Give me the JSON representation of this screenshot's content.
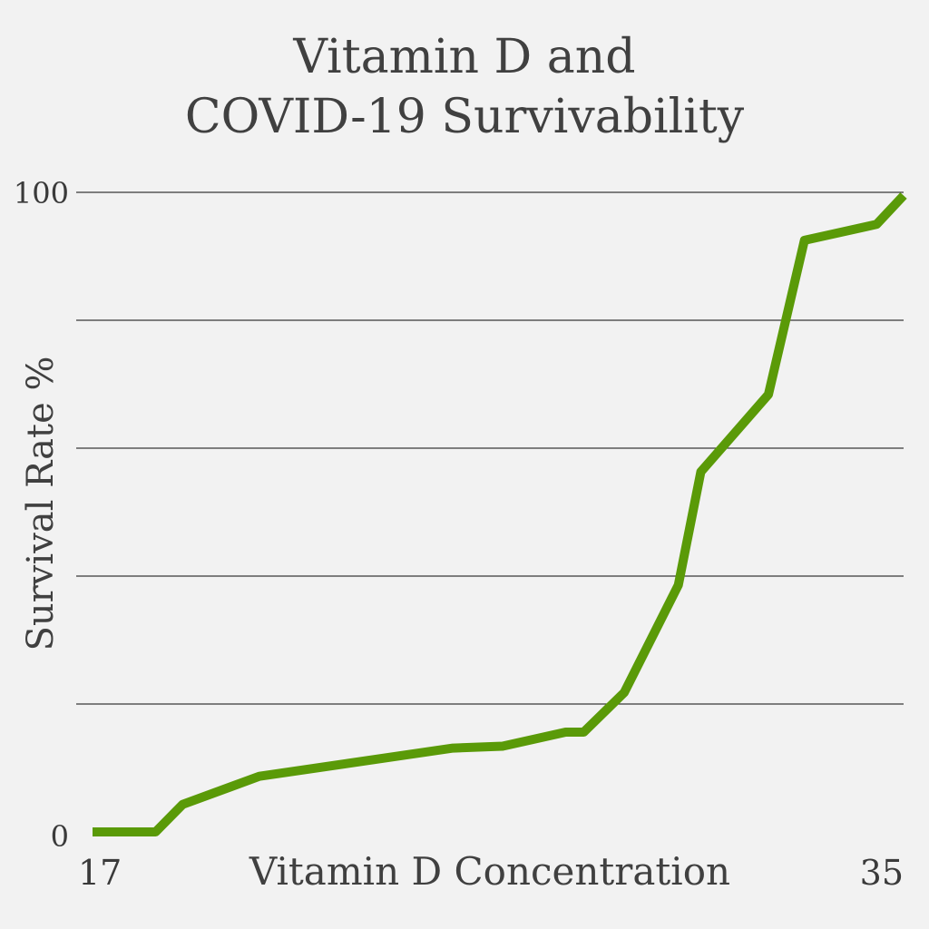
{
  "chart_data": {
    "type": "line",
    "title_lines": [
      "Vitamin D and",
      "COVID-19 Survivability"
    ],
    "xlabel": "Vitamin D Concentration",
    "ylabel": "Survival Rate %",
    "xlim": [
      17,
      35
    ],
    "ylim": [
      0,
      100
    ],
    "x_tick_labels": [
      "17",
      "35"
    ],
    "y_tick_labels": [
      "0",
      "100"
    ],
    "y_gridlines": [
      20,
      40,
      60,
      80,
      100
    ],
    "grid": true,
    "line_color": "#5a9a08",
    "series": [
      {
        "points": [
          [
            17.0,
            0.0
          ],
          [
            18.4,
            0.0
          ],
          [
            19.0,
            4.3
          ],
          [
            20.7,
            8.7
          ],
          [
            25.0,
            13.1
          ],
          [
            26.1,
            13.4
          ],
          [
            27.5,
            15.6
          ],
          [
            27.9,
            15.6
          ],
          [
            28.8,
            21.8
          ],
          [
            30.0,
            38.6
          ],
          [
            30.5,
            56.3
          ],
          [
            32.0,
            68.4
          ],
          [
            32.8,
            92.5
          ],
          [
            34.4,
            95.0
          ],
          [
            35.0,
            99.5
          ]
        ]
      }
    ]
  }
}
